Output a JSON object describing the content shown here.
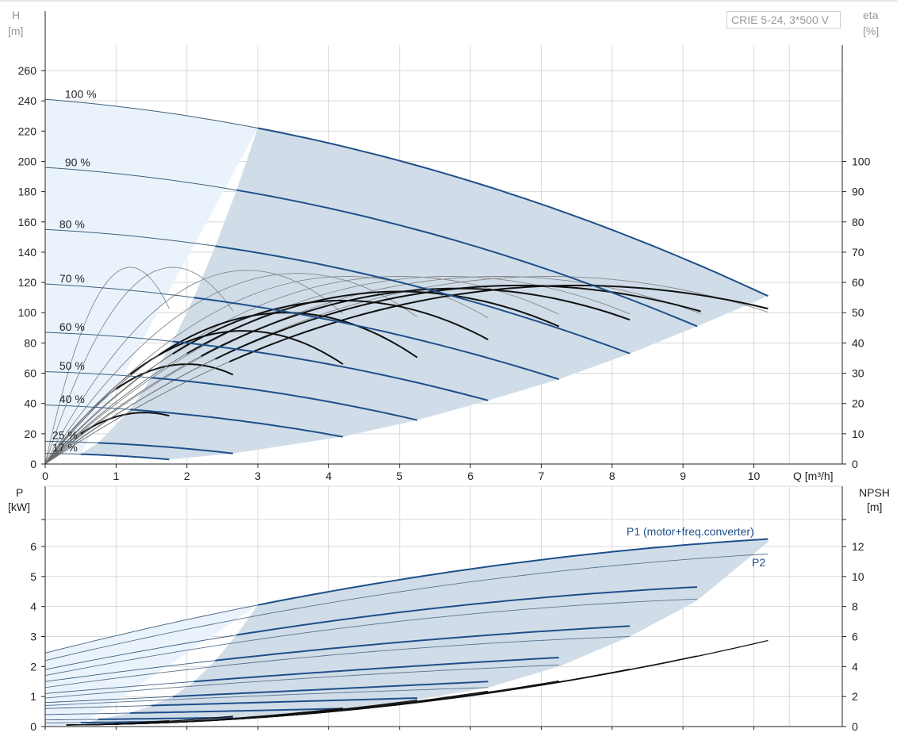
{
  "chart_data": [
    {
      "type": "line",
      "name": "head",
      "legend": "CRIE 5-24, 3*500 V",
      "y_unit_left": "H",
      "y_unit_left_sub": "[m]",
      "y_unit_right": "eta",
      "y_unit_right_sub": "[%]",
      "x_unit": "Q [m³/h]",
      "xlim": [
        0,
        11
      ],
      "ylim": [
        0,
        280
      ],
      "x_ticks": [
        0,
        1,
        2,
        3,
        4,
        5,
        6,
        7,
        8,
        9,
        10
      ],
      "y_ticks": [
        0,
        20,
        40,
        60,
        80,
        100,
        120,
        140,
        160,
        180,
        200,
        220,
        240,
        260
      ],
      "eta_ticks": [
        0,
        10,
        20,
        30,
        40,
        50,
        60,
        70,
        80,
        90,
        100
      ],
      "eta_scale": 2,
      "grid": true,
      "speed_curves": [
        {
          "label": "100 %",
          "points": [
            [
              0,
              241
            ],
            [
              3,
              222
            ],
            [
              10.2,
              111
            ]
          ],
          "split": 3
        },
        {
          "label": "90 %",
          "points": [
            [
              0,
              196
            ],
            [
              2.7,
              181
            ],
            [
              9.2,
              91
            ]
          ],
          "split": 2.7
        },
        {
          "label": "80 %",
          "points": [
            [
              0,
              155
            ],
            [
              2.4,
              144
            ],
            [
              8.25,
              73
            ]
          ],
          "split": 2.4
        },
        {
          "label": "70 %",
          "points": [
            [
              0,
              119
            ],
            [
              2.1,
              110
            ],
            [
              7.25,
              56
            ]
          ],
          "split": 2.1
        },
        {
          "label": "60 %",
          "points": [
            [
              0,
              87
            ],
            [
              1.8,
              81
            ],
            [
              6.25,
              42
            ]
          ],
          "split": 1.8
        },
        {
          "label": "50 %",
          "points": [
            [
              0,
              61
            ],
            [
              1.5,
              57
            ],
            [
              5.25,
              29
            ]
          ],
          "split": 1.5
        },
        {
          "label": "40 %",
          "points": [
            [
              0,
              39
            ],
            [
              1.2,
              36
            ],
            [
              4.2,
              18
            ]
          ],
          "split": 1.2
        },
        {
          "label": "25 %",
          "points": [
            [
              0,
              15
            ],
            [
              0.75,
              14
            ],
            [
              2.65,
              7
            ]
          ],
          "split": 0.75
        },
        {
          "label": "17 %",
          "points": [
            [
              0,
              7
            ],
            [
              0.5,
              6.5
            ],
            [
              1.75,
              3
            ]
          ],
          "split": 0.5
        }
      ],
      "eta_curves": [
        {
          "peak_q": 1.2,
          "peak_eta": 65,
          "end_q": 1.75
        },
        {
          "peak_q": 1.8,
          "peak_eta": 65,
          "end_q": 2.65
        },
        {
          "peak_q": 2.85,
          "peak_eta": 64,
          "end_q": 4.2
        },
        {
          "peak_q": 3.55,
          "peak_eta": 63,
          "end_q": 5.25
        },
        {
          "peak_q": 4.25,
          "peak_eta": 62,
          "end_q": 6.25
        },
        {
          "peak_q": 5.0,
          "peak_eta": 62,
          "end_q": 7.25
        },
        {
          "peak_q": 5.7,
          "peak_eta": 62,
          "end_q": 8.25
        },
        {
          "peak_q": 6.4,
          "peak_eta": 62,
          "end_q": 9.25
        },
        {
          "peak_q": 7.1,
          "peak_eta": 62,
          "end_q": 10.2
        }
      ],
      "eta_total_curves": [
        {
          "peak_q": 1.4,
          "peak_eta": 17,
          "start_q": 0.5,
          "end_q": 1.75
        },
        {
          "peak_q": 2.0,
          "peak_eta": 33,
          "start_q": 1.0,
          "end_q": 2.65
        },
        {
          "peak_q": 2.8,
          "peak_eta": 44,
          "start_q": 1.2,
          "end_q": 4.2
        },
        {
          "peak_q": 3.4,
          "peak_eta": 50,
          "start_q": 1.6,
          "end_q": 5.25
        },
        {
          "peak_q": 4.2,
          "peak_eta": 54,
          "start_q": 1.8,
          "end_q": 6.25
        },
        {
          "peak_q": 5.0,
          "peak_eta": 57,
          "start_q": 2.0,
          "end_q": 7.25
        },
        {
          "peak_q": 5.8,
          "peak_eta": 58,
          "start_q": 2.2,
          "end_q": 8.25
        },
        {
          "peak_q": 6.7,
          "peak_eta": 59,
          "start_q": 2.4,
          "end_q": 9.25
        },
        {
          "peak_q": 7.5,
          "peak_eta": 59,
          "start_q": 2.6,
          "end_q": 10.2
        }
      ]
    },
    {
      "type": "line",
      "name": "power",
      "y_unit_left": "P",
      "y_unit_left_sub": "[kW]",
      "y_unit_right": "NPSH",
      "y_unit_right_sub": "[m]",
      "xlim": [
        0,
        11
      ],
      "ylim": [
        0,
        7
      ],
      "y_ticks": [
        0,
        1,
        2,
        3,
        4,
        5,
        6
      ],
      "npsh_ticks": [
        0,
        2,
        4,
        6,
        8,
        10,
        12
      ],
      "npsh_scale": 0.5,
      "p1_label": "P1 (motor+freq.converter)",
      "p2_label": "P2",
      "p1_curves": [
        {
          "points": [
            [
              0,
              2.45
            ],
            [
              3,
              4.05
            ],
            [
              10.2,
              6.25
            ]
          ],
          "split": 3
        },
        {
          "points": [
            [
              0,
              1.9
            ],
            [
              2.7,
              3.05
            ],
            [
              9.2,
              4.65
            ]
          ],
          "split": 2.7
        },
        {
          "points": [
            [
              0,
              1.5
            ],
            [
              2.4,
              2.2
            ],
            [
              8.25,
              3.35
            ]
          ],
          "split": 2.4
        },
        {
          "points": [
            [
              0,
              1.1
            ],
            [
              2.1,
              1.5
            ],
            [
              7.25,
              2.3
            ]
          ],
          "split": 2.1
        },
        {
          "points": [
            [
              0,
              0.8
            ],
            [
              1.8,
              1.0
            ],
            [
              6.25,
              1.5
            ]
          ],
          "split": 1.8
        },
        {
          "points": [
            [
              0,
              0.6
            ],
            [
              1.5,
              0.7
            ],
            [
              5.25,
              0.95
            ]
          ],
          "split": 1.5
        },
        {
          "points": [
            [
              0,
              0.4
            ],
            [
              1.2,
              0.45
            ],
            [
              4.2,
              0.6
            ]
          ],
          "split": 1.2
        },
        {
          "points": [
            [
              0,
              0.22
            ],
            [
              0.75,
              0.24
            ],
            [
              2.65,
              0.3
            ]
          ],
          "split": 0.75
        },
        {
          "points": [
            [
              0,
              0.12
            ],
            [
              0.5,
              0.13
            ],
            [
              1.75,
              0.17
            ]
          ],
          "split": 0.5
        }
      ],
      "p2_curves": [
        {
          "end_q": 10.2,
          "points": [
            [
              0,
              2.2
            ],
            [
              3,
              3.7
            ],
            [
              10.2,
              5.75
            ]
          ]
        },
        {
          "end_q": 9.2,
          "points": [
            [
              0,
              1.7
            ],
            [
              2.7,
              2.8
            ],
            [
              9.2,
              4.25
            ]
          ]
        },
        {
          "end_q": 8.25,
          "points": [
            [
              0,
              1.3
            ],
            [
              2.4,
              2.0
            ],
            [
              8.25,
              3.0
            ]
          ]
        },
        {
          "end_q": 7.25,
          "points": [
            [
              0,
              0.95
            ],
            [
              2.1,
              1.35
            ],
            [
              7.25,
              2.05
            ]
          ]
        },
        {
          "end_q": 6.25,
          "points": [
            [
              0,
              0.7
            ],
            [
              1.8,
              0.9
            ],
            [
              6.25,
              1.3
            ]
          ]
        }
      ],
      "npsh_curves": [
        {
          "end_q": 10.2,
          "end_npsh": 5.75
        },
        {
          "end_q": 9.2,
          "end_npsh": 4.7
        },
        {
          "end_q": 8.25,
          "end_npsh": 3.8
        },
        {
          "end_q": 7.25,
          "end_npsh": 3.0
        },
        {
          "end_q": 6.25,
          "end_npsh": 2.3
        },
        {
          "end_q": 5.25,
          "end_npsh": 1.7
        },
        {
          "end_q": 4.2,
          "end_npsh": 1.15
        },
        {
          "end_q": 2.65,
          "end_npsh": 0.6
        },
        {
          "end_q": 1.75,
          "end_npsh": 0.3
        }
      ]
    }
  ],
  "colors": {
    "grid": "#d8d8d8",
    "light_region": "#eaf3fc",
    "dark_region": "#d0dde8",
    "curve_blue": "#1f4f8a",
    "curve_thin": "#40607f",
    "eta_black": "#111111",
    "axis": "#222222"
  }
}
